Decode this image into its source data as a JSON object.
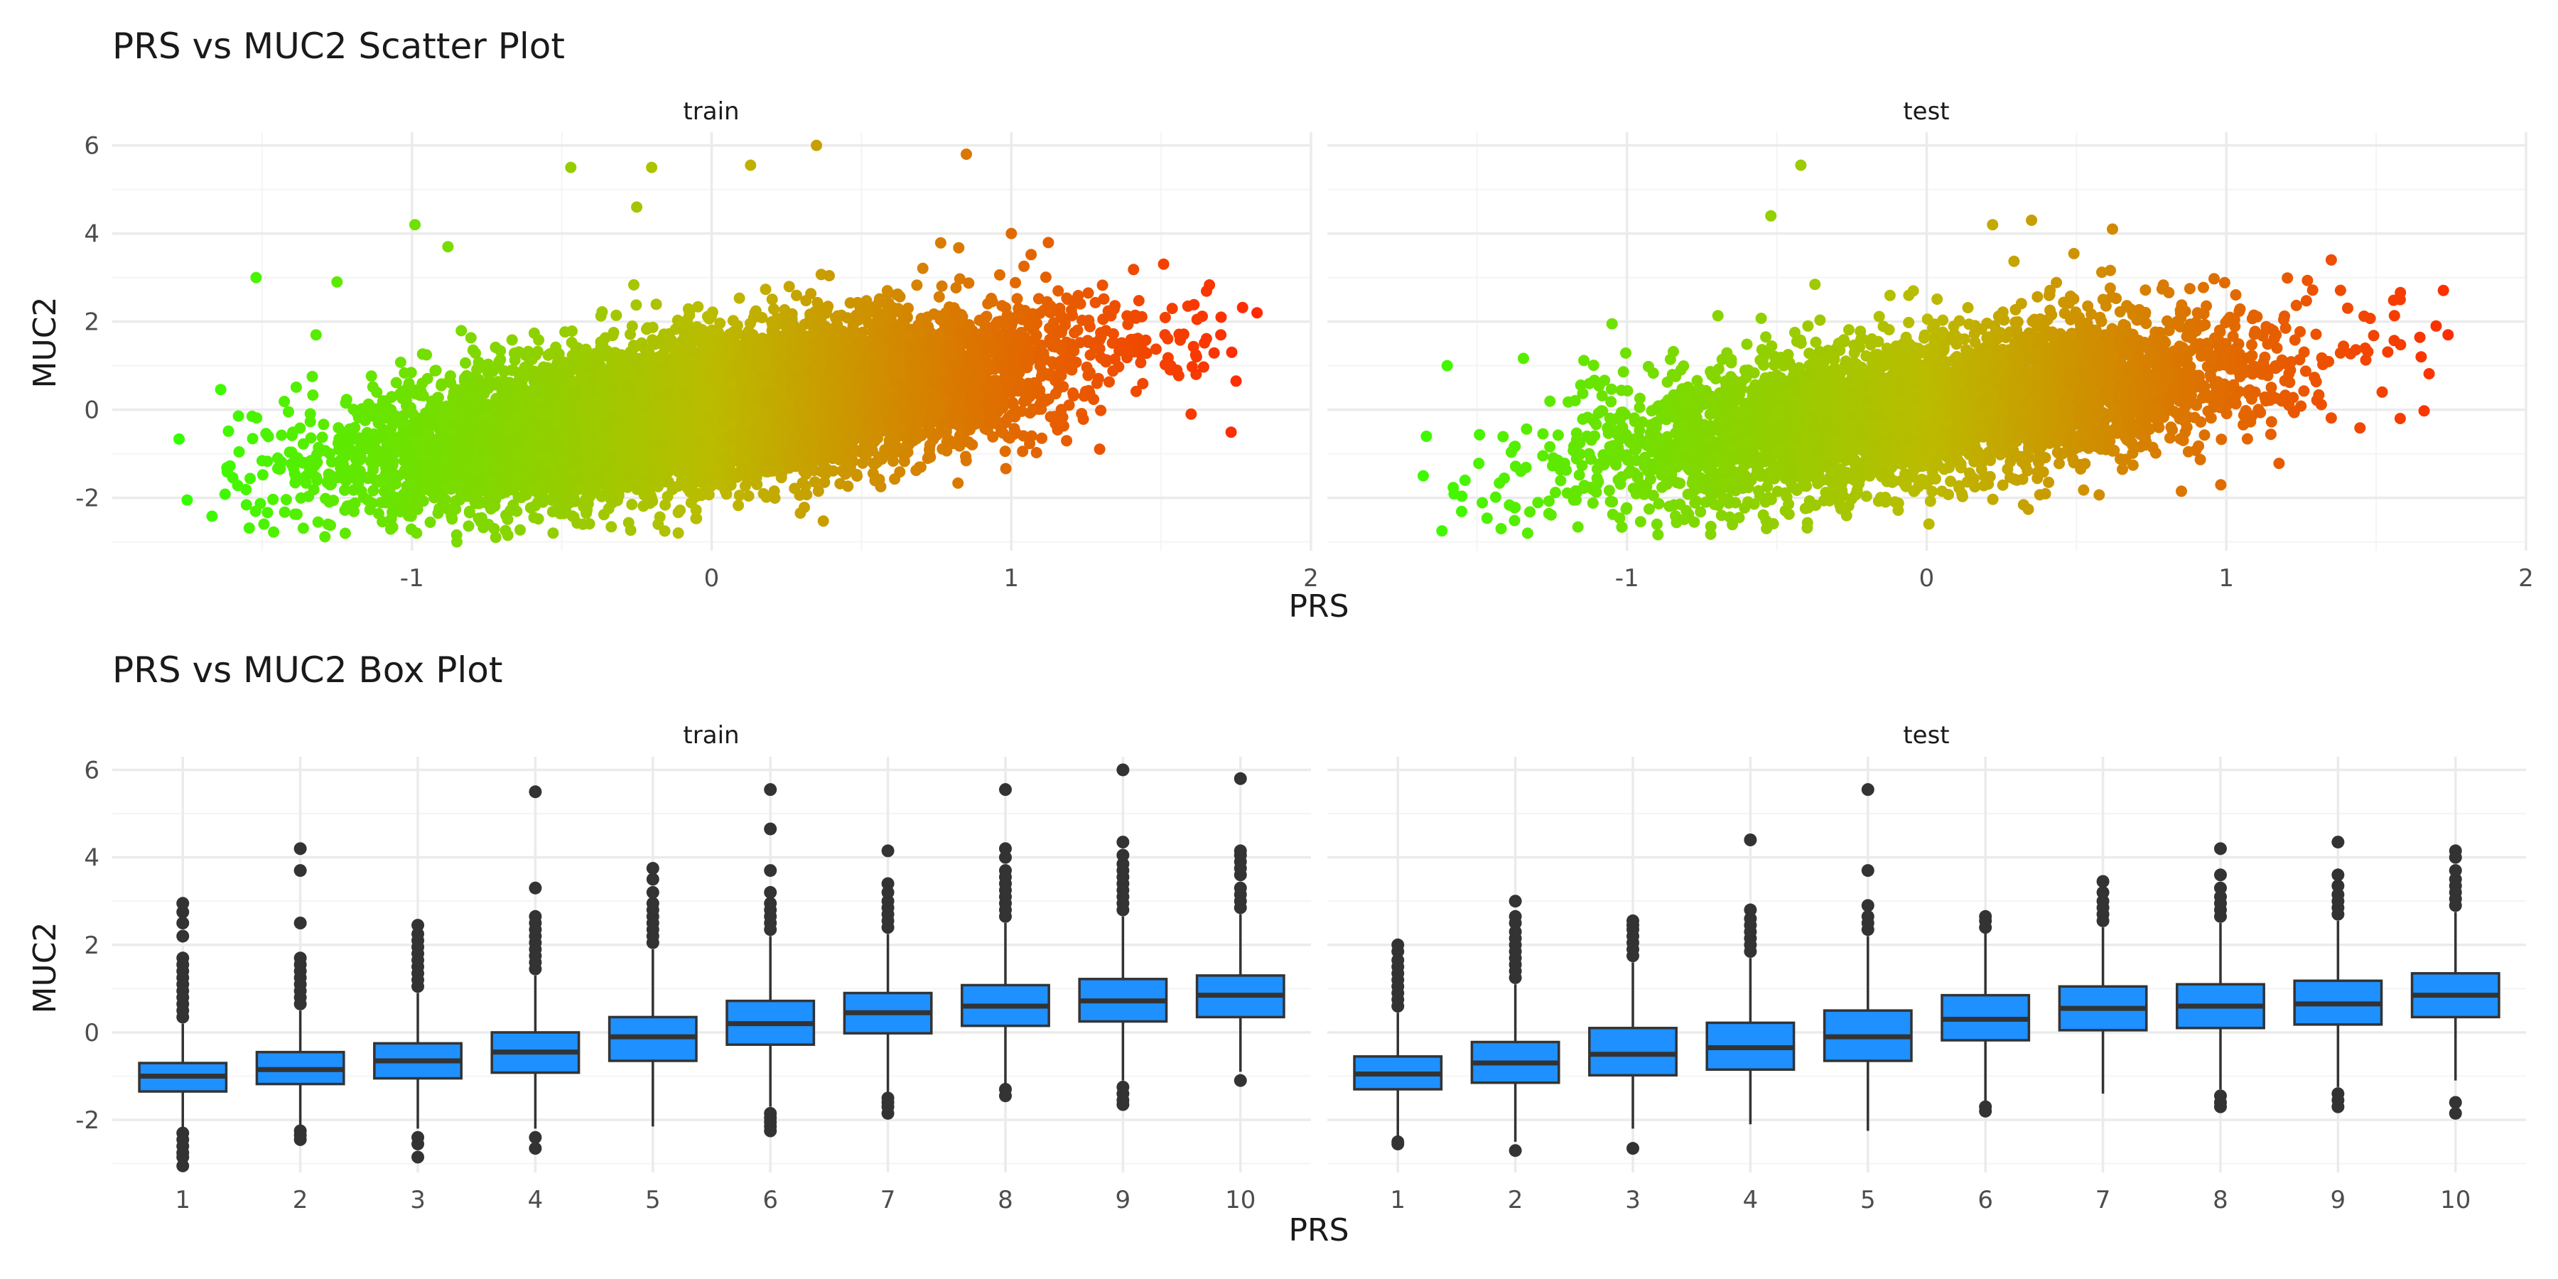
{
  "chart_data": [
    {
      "type": "scatter",
      "title": "PRS vs MUC2 Scatter Plot",
      "xlabel": "PRS",
      "ylabel": "MUC2",
      "facets": [
        "train",
        "test"
      ],
      "xlim": [
        -2.0,
        2.0
      ],
      "ylim": [
        -3.2,
        6.3
      ],
      "x_ticks": [
        -1,
        0,
        1,
        2
      ],
      "y_ticks": [
        -2,
        0,
        2,
        4,
        6
      ],
      "x_tick_labels": [
        "-1",
        "0",
        "1",
        "2"
      ],
      "y_tick_labels": [
        "-2",
        "0",
        "2",
        "4",
        "6"
      ],
      "grid": true,
      "color_gradient": {
        "low": "#33ff00",
        "mid": "#bbbb00",
        "high": "#ff2a00"
      },
      "series": [
        {
          "facet": "train",
          "n_points_approx": 9000,
          "trend": {
            "slope": 0.95,
            "intercept": 0.0,
            "noise_sd": 0.82
          },
          "x_range": [
            -1.78,
            1.82
          ],
          "notable_points": [
            [
              -1.52,
              3.0
            ],
            [
              -1.25,
              2.9
            ],
            [
              -1.32,
              1.7
            ],
            [
              -0.99,
              4.2
            ],
            [
              -0.88,
              3.7
            ],
            [
              -0.47,
              5.5
            ],
            [
              -0.25,
              4.6
            ],
            [
              -0.2,
              5.5
            ],
            [
              0.13,
              5.55
            ],
            [
              0.35,
              6.0
            ],
            [
              0.85,
              5.8
            ],
            [
              1.0,
              4.0
            ],
            [
              1.62,
              2.05
            ],
            [
              1.7,
              2.1
            ],
            [
              1.82,
              2.2
            ],
            [
              1.75,
              0.65
            ],
            [
              1.6,
              -0.1
            ],
            [
              -0.85,
              -3.0
            ],
            [
              -0.68,
              -2.85
            ],
            [
              -1.75,
              -2.05
            ],
            [
              -1.28,
              -2.6
            ]
          ]
        },
        {
          "facet": "test",
          "n_points_approx": 4500,
          "trend": {
            "slope": 0.95,
            "intercept": 0.0,
            "noise_sd": 0.82
          },
          "x_range": [
            -1.72,
            1.74
          ],
          "notable_points": [
            [
              -0.42,
              5.55
            ],
            [
              -0.52,
              4.4
            ],
            [
              0.22,
              4.2
            ],
            [
              0.35,
              4.3
            ],
            [
              0.62,
              4.1
            ],
            [
              1.35,
              3.4
            ],
            [
              1.58,
              2.5
            ],
            [
              1.7,
              1.9
            ],
            [
              1.74,
              1.7
            ],
            [
              1.65,
              1.2
            ],
            [
              1.52,
              0.4
            ],
            [
              1.58,
              -0.2
            ],
            [
              0.85,
              -1.85
            ],
            [
              -1.68,
              -1.5
            ],
            [
              -1.42,
              -2.7
            ],
            [
              -0.9,
              -2.6
            ],
            [
              -0.72,
              -2.65
            ],
            [
              -1.6,
              1.0
            ],
            [
              -1.05,
              1.95
            ]
          ]
        }
      ]
    },
    {
      "type": "box",
      "title": "PRS vs MUC2 Box Plot",
      "xlabel": "PRS",
      "ylabel": "MUC2",
      "facets": [
        "train",
        "test"
      ],
      "categories": [
        "1",
        "2",
        "3",
        "4",
        "5",
        "6",
        "7",
        "8",
        "9",
        "10"
      ],
      "ylim": [
        -3.2,
        6.3
      ],
      "y_ticks": [
        -2,
        0,
        2,
        4,
        6
      ],
      "y_tick_labels": [
        "-2",
        "0",
        "2",
        "4",
        "6"
      ],
      "grid": true,
      "fill": "#1e90ff",
      "series": [
        {
          "facet": "train",
          "boxes": [
            {
              "q1": -1.35,
              "median": -1.0,
              "q3": -0.7,
              "whisker_low": -2.2,
              "whisker_high": 0.2,
              "outliers": [
                0.35,
                0.5,
                0.65,
                0.8,
                0.95,
                1.1,
                1.25,
                1.4,
                1.55,
                1.7,
                2.2,
                2.5,
                2.75,
                2.95,
                -2.3,
                -2.45,
                -2.6,
                -2.75,
                -2.85,
                -3.05
              ]
            },
            {
              "q1": -1.18,
              "median": -0.85,
              "q3": -0.45,
              "whisker_low": -2.15,
              "whisker_high": 0.5,
              "outliers": [
                0.65,
                0.8,
                0.95,
                1.1,
                1.25,
                1.4,
                1.55,
                1.7,
                2.5,
                3.7,
                4.2,
                -2.25,
                -2.35,
                -2.45
              ]
            },
            {
              "q1": -1.05,
              "median": -0.65,
              "q3": -0.25,
              "whisker_low": -2.2,
              "whisker_high": 0.9,
              "outliers": [
                1.05,
                1.2,
                1.35,
                1.5,
                1.65,
                1.8,
                1.95,
                2.1,
                2.25,
                2.45,
                -2.4,
                -2.55,
                -2.85
              ]
            },
            {
              "q1": -0.92,
              "median": -0.45,
              "q3": 0.0,
              "whisker_low": -2.2,
              "whisker_high": 1.3,
              "outliers": [
                1.45,
                1.6,
                1.75,
                1.9,
                2.05,
                2.2,
                2.35,
                2.5,
                2.65,
                3.3,
                5.5,
                -2.4,
                -2.65
              ]
            },
            {
              "q1": -0.65,
              "median": -0.1,
              "q3": 0.35,
              "whisker_low": -2.15,
              "whisker_high": 1.9,
              "outliers": [
                2.05,
                2.2,
                2.35,
                2.5,
                2.65,
                2.8,
                2.95,
                3.2,
                3.5,
                3.75
              ]
            },
            {
              "q1": -0.28,
              "median": 0.2,
              "q3": 0.72,
              "whisker_low": -1.7,
              "whisker_high": 2.2,
              "outliers": [
                2.35,
                2.5,
                2.65,
                2.8,
                2.95,
                3.2,
                3.7,
                4.65,
                5.55,
                -1.85,
                -1.95,
                -2.05,
                -2.15,
                -2.25
              ]
            },
            {
              "q1": -0.02,
              "median": 0.45,
              "q3": 0.9,
              "whisker_low": -1.4,
              "whisker_high": 2.25,
              "outliers": [
                2.4,
                2.55,
                2.7,
                2.85,
                3.0,
                3.2,
                3.4,
                4.15,
                -1.5,
                -1.6,
                -1.7,
                -1.85
              ]
            },
            {
              "q1": 0.15,
              "median": 0.6,
              "q3": 1.08,
              "whisker_low": -1.2,
              "whisker_high": 2.5,
              "outliers": [
                2.65,
                2.8,
                2.95,
                3.1,
                3.25,
                3.4,
                3.55,
                3.7,
                4.0,
                4.2,
                5.55,
                -1.3,
                -1.45
              ]
            },
            {
              "q1": 0.25,
              "median": 0.72,
              "q3": 1.22,
              "whisker_low": -1.1,
              "whisker_high": 2.65,
              "outliers": [
                2.8,
                2.95,
                3.1,
                3.25,
                3.4,
                3.55,
                3.7,
                3.85,
                4.05,
                4.35,
                6.0,
                -1.25,
                -1.4,
                -1.55,
                -1.65
              ]
            },
            {
              "q1": 0.35,
              "median": 0.85,
              "q3": 1.3,
              "whisker_low": -0.9,
              "whisker_high": 2.7,
              "outliers": [
                2.85,
                3.0,
                3.15,
                3.3,
                3.6,
                3.75,
                3.9,
                4.05,
                4.15,
                5.8,
                -1.1
              ]
            }
          ]
        },
        {
          "facet": "test",
          "boxes": [
            {
              "q1": -1.3,
              "median": -0.95,
              "q3": -0.55,
              "whisker_low": -2.4,
              "whisker_high": 0.45,
              "outliers": [
                0.6,
                0.75,
                0.9,
                1.05,
                1.2,
                1.35,
                1.5,
                1.65,
                1.85,
                2.0,
                -2.5,
                -2.55
              ]
            },
            {
              "q1": -1.15,
              "median": -0.7,
              "q3": -0.22,
              "whisker_low": -2.5,
              "whisker_high": 1.1,
              "outliers": [
                1.25,
                1.4,
                1.55,
                1.7,
                1.85,
                2.0,
                2.15,
                2.3,
                2.5,
                2.65,
                3.0,
                -2.7
              ]
            },
            {
              "q1": -0.98,
              "median": -0.5,
              "q3": 0.1,
              "whisker_low": -2.2,
              "whisker_high": 1.6,
              "outliers": [
                1.75,
                1.9,
                2.05,
                2.2,
                2.35,
                2.45,
                2.55,
                -2.65
              ]
            },
            {
              "q1": -0.85,
              "median": -0.35,
              "q3": 0.22,
              "whisker_low": -2.1,
              "whisker_high": 1.7,
              "outliers": [
                1.85,
                2.0,
                2.15,
                2.3,
                2.45,
                2.6,
                2.8,
                4.4
              ]
            },
            {
              "q1": -0.65,
              "median": -0.1,
              "q3": 0.5,
              "whisker_low": -2.25,
              "whisker_high": 2.2,
              "outliers": [
                2.35,
                2.5,
                2.65,
                2.9,
                3.7,
                5.55
              ]
            },
            {
              "q1": -0.18,
              "median": 0.3,
              "q3": 0.85,
              "whisker_low": -1.6,
              "whisker_high": 2.3,
              "outliers": [
                2.4,
                2.55,
                2.65,
                -1.7,
                -1.8
              ]
            },
            {
              "q1": 0.05,
              "median": 0.55,
              "q3": 1.05,
              "whisker_low": -1.4,
              "whisker_high": 2.4,
              "outliers": [
                2.55,
                2.7,
                2.85,
                3.0,
                3.2,
                3.45
              ]
            },
            {
              "q1": 0.1,
              "median": 0.6,
              "q3": 1.1,
              "whisker_low": -1.3,
              "whisker_high": 2.5,
              "outliers": [
                2.65,
                2.8,
                2.95,
                3.1,
                3.3,
                3.6,
                4.2,
                -1.45,
                -1.6,
                -1.7
              ]
            },
            {
              "q1": 0.18,
              "median": 0.65,
              "q3": 1.18,
              "whisker_low": -1.25,
              "whisker_high": 2.55,
              "outliers": [
                2.7,
                2.85,
                3.0,
                3.15,
                3.35,
                3.6,
                4.35,
                -1.4,
                -1.55,
                -1.7
              ]
            },
            {
              "q1": 0.35,
              "median": 0.85,
              "q3": 1.35,
              "whisker_low": -1.1,
              "whisker_high": 2.75,
              "outliers": [
                2.9,
                3.05,
                3.2,
                3.35,
                3.5,
                3.7,
                4.0,
                4.15,
                -1.6,
                -1.85
              ]
            }
          ]
        }
      ]
    }
  ]
}
